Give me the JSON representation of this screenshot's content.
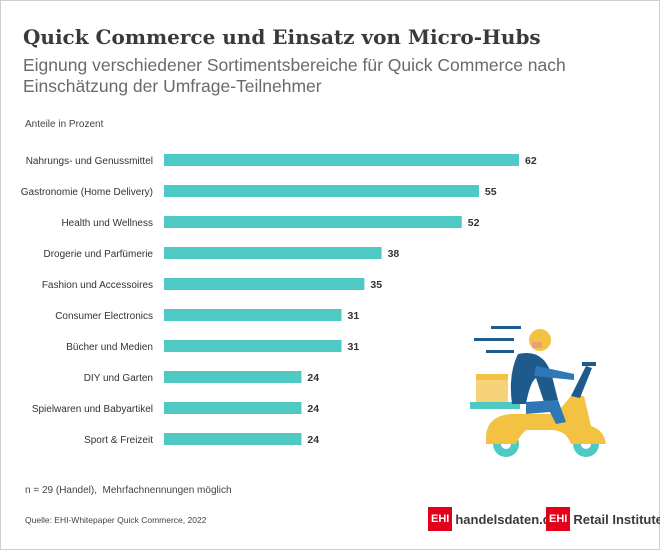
{
  "title": "Quick Commerce und Einsatz von Micro-Hubs",
  "subtitle": "Eignung verschiedener Sortimentsbereiche für Quick Commerce nach Einschätzung der Umfrage-Teilnehmer",
  "unit_label": "Anteile in Prozent",
  "footnote": "n = 29 (Handel),  Mehrfachnennungen möglich",
  "source": "Quelle: EHI-Whitepaper Quick Commerce, 2022",
  "brands": {
    "box_label": "EHI",
    "site": "handelsdaten.de",
    "institute": "Retail Institute",
    "registered": "®"
  },
  "colors": {
    "bar": "#4fc9c3",
    "text": "#333333",
    "brand": "#e2001a"
  },
  "illustration": {
    "icon": "delivery-scooter-rider-icon"
  },
  "chart_data": {
    "type": "bar",
    "orientation": "horizontal",
    "categories": [
      "Nahrungs- und Genussmittel",
      "Gastronomie (Home Delivery)",
      "Health und Wellness",
      "Drogerie und Parfümerie",
      "Fashion und Accessoires",
      "Consumer Electronics",
      "Bücher und Medien",
      "DIY und Garten",
      "Spielwaren und Babyartikel",
      "Sport & Freizeit"
    ],
    "values": [
      62,
      55,
      52,
      38,
      35,
      31,
      31,
      24,
      24,
      24
    ],
    "data_labels": [
      "62",
      "55",
      "52",
      "38",
      "35",
      "31",
      "31",
      "24",
      "24",
      "24"
    ],
    "title": "",
    "xlabel": "",
    "ylabel": "",
    "xlim": [
      0,
      62
    ],
    "grid": false,
    "legend": "none"
  }
}
